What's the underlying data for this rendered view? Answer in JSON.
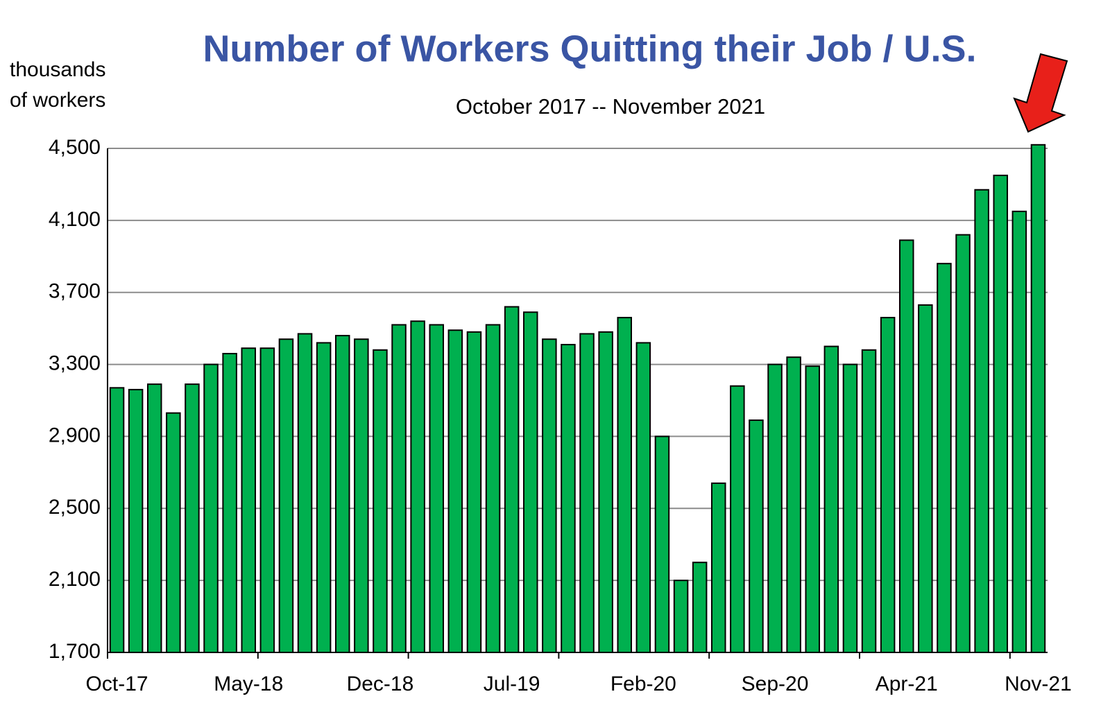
{
  "chart_data": {
    "type": "bar",
    "title": "Number of Workers Quitting their Job / U.S.",
    "subtitle": "October  2017 -- November 2021",
    "y_label": [
      "thousands",
      "of workers"
    ],
    "categories": [
      "Oct-17",
      null,
      null,
      null,
      null,
      null,
      null,
      "May-18",
      null,
      null,
      null,
      null,
      null,
      null,
      "Dec-18",
      null,
      null,
      null,
      null,
      null,
      null,
      "Jul-19",
      null,
      null,
      null,
      null,
      null,
      null,
      "Feb-20",
      null,
      null,
      null,
      null,
      null,
      null,
      "Sep-20",
      null,
      null,
      null,
      null,
      null,
      null,
      "Apr-21",
      null,
      null,
      null,
      null,
      null,
      null,
      "Nov-21"
    ],
    "values": [
      3170,
      3160,
      3190,
      3030,
      3190,
      3300,
      3360,
      3390,
      3390,
      3440,
      3470,
      3420,
      3460,
      3440,
      3380,
      3520,
      3540,
      3520,
      3490,
      3480,
      3520,
      3620,
      3590,
      3440,
      3410,
      3470,
      3480,
      3560,
      3420,
      2900,
      2100,
      2200,
      2640,
      3180,
      2990,
      3300,
      3340,
      3290,
      3400,
      3300,
      3380,
      3560,
      3990,
      3630,
      3860,
      4020,
      4270,
      4350,
      4150,
      4520
    ],
    "color": "#00b04f",
    "ylim": [
      1700,
      4500
    ],
    "yticks": [
      {
        "value": 1700,
        "label": "1,700"
      },
      {
        "value": 2100,
        "label": "2,100"
      },
      {
        "value": 2500,
        "label": "2,500"
      },
      {
        "value": 2900,
        "label": "2,900"
      },
      {
        "value": 3300,
        "label": "3,300"
      },
      {
        "value": 3700,
        "label": "3,700"
      },
      {
        "value": 4100,
        "label": "4,100"
      },
      {
        "value": 4500,
        "label": "4,500"
      }
    ],
    "grid": true
  }
}
